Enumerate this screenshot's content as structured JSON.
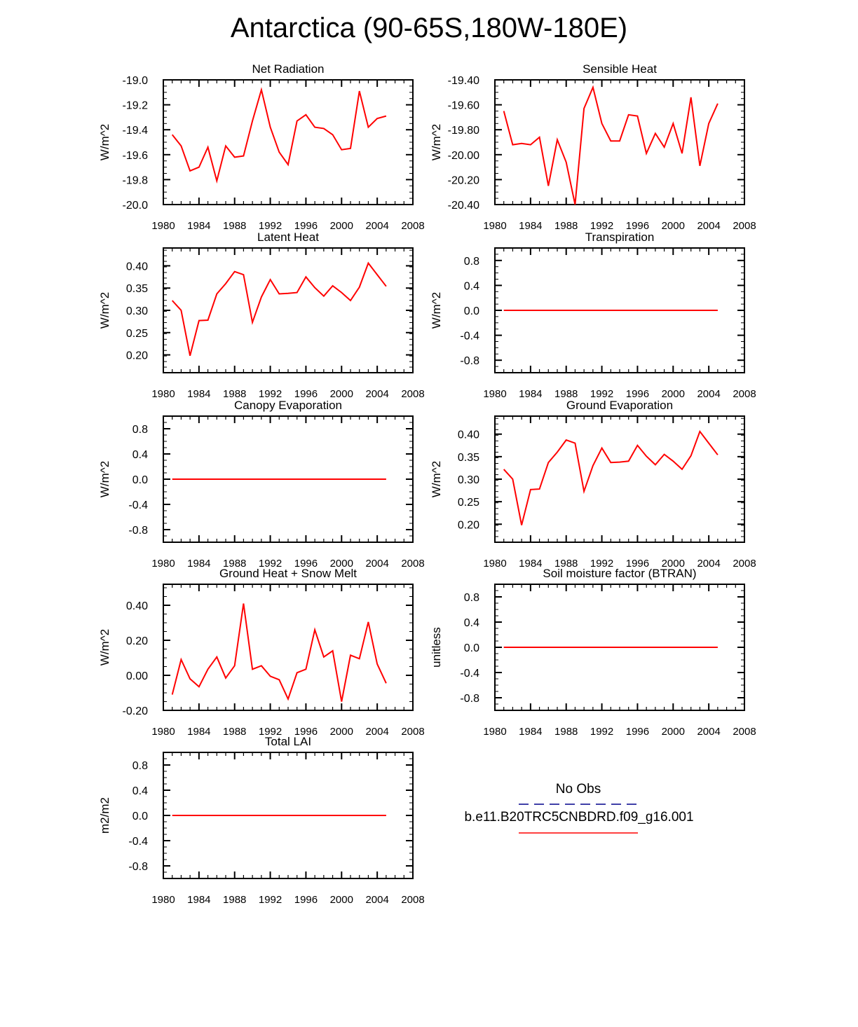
{
  "page_title": "Antarctica (90-65S,180W-180E)",
  "colors": {
    "model_line": "#ff0000",
    "obs_line": "#00008b",
    "frame": "#000000"
  },
  "legend": {
    "obs_label": "No Obs",
    "model_label": "b.e11.B20TRC5CNBDRD.f09_g16.001"
  },
  "chart_data": [
    {
      "type": "line",
      "title": "Net Radiation",
      "ylabel": "W/m^2",
      "xlim": [
        1980,
        2008
      ],
      "ylim": [
        -20.0,
        -19.0
      ],
      "x_ticks": [
        1980,
        1984,
        1988,
        1992,
        1996,
        2000,
        2004,
        2008
      ],
      "y_ticks": [
        -19.0,
        -19.2,
        -19.4,
        -19.6,
        -19.8,
        -20.0
      ],
      "y_tick_labels": [
        "-19.0",
        "-19.2",
        "-19.4",
        "-19.6",
        "-19.8",
        "-20.0"
      ],
      "x": [
        1981,
        1982,
        1983,
        1984,
        1985,
        1986,
        1987,
        1988,
        1989,
        1990,
        1991,
        1992,
        1993,
        1994,
        1995,
        1996,
        1997,
        1998,
        1999,
        2000,
        2001,
        2002,
        2003,
        2004,
        2005
      ],
      "series": [
        {
          "values": [
            -19.44,
            -19.53,
            -19.73,
            -19.7,
            -19.54,
            -19.81,
            -19.53,
            -19.62,
            -19.61,
            -19.33,
            -19.08,
            -19.38,
            -19.58,
            -19.68,
            -19.33,
            -19.28,
            -19.38,
            -19.39,
            -19.44,
            -19.56,
            -19.55,
            -19.09,
            -19.38,
            -19.31,
            -19.29
          ]
        }
      ]
    },
    {
      "type": "line",
      "title": "Sensible Heat",
      "ylabel": "W/m^2",
      "xlim": [
        1980,
        2008
      ],
      "ylim": [
        -20.4,
        -19.4
      ],
      "x_ticks": [
        1980,
        1984,
        1988,
        1992,
        1996,
        2000,
        2004,
        2008
      ],
      "y_ticks": [
        -19.4,
        -19.6,
        -19.8,
        -20.0,
        -20.2,
        -20.4
      ],
      "y_tick_labels": [
        "-19.40",
        "-19.60",
        "-19.80",
        "-20.00",
        "-20.20",
        "-20.40"
      ],
      "x": [
        1981,
        1982,
        1983,
        1984,
        1985,
        1986,
        1987,
        1988,
        1989,
        1990,
        1991,
        1992,
        1993,
        1994,
        1995,
        1996,
        1997,
        1998,
        1999,
        2000,
        2001,
        2002,
        2003,
        2004,
        2005
      ],
      "series": [
        {
          "values": [
            -19.65,
            -19.92,
            -19.91,
            -19.92,
            -19.86,
            -20.25,
            -19.88,
            -20.06,
            -20.4,
            -19.63,
            -19.46,
            -19.75,
            -19.89,
            -19.89,
            -19.68,
            -19.69,
            -19.99,
            -19.83,
            -19.94,
            -19.75,
            -19.99,
            -19.54,
            -20.09,
            -19.75,
            -19.59
          ]
        }
      ]
    },
    {
      "type": "line",
      "title": "Latent Heat",
      "ylabel": "W/m^2",
      "xlim": [
        1980,
        2008
      ],
      "ylim": [
        0.16,
        0.44
      ],
      "x_ticks": [
        1980,
        1984,
        1988,
        1992,
        1996,
        2000,
        2004,
        2008
      ],
      "y_ticks": [
        0.4,
        0.35,
        0.3,
        0.25,
        0.2
      ],
      "y_tick_labels": [
        "0.40",
        "0.35",
        "0.30",
        "0.25",
        "0.20"
      ],
      "x": [
        1981,
        1982,
        1983,
        1984,
        1985,
        1986,
        1987,
        1988,
        1989,
        1990,
        1991,
        1992,
        1993,
        1994,
        1995,
        1996,
        1997,
        1998,
        1999,
        2000,
        2001,
        2002,
        2003,
        2004,
        2005
      ],
      "series": [
        {
          "values": [
            0.322,
            0.3,
            0.198,
            0.277,
            0.278,
            0.337,
            0.36,
            0.387,
            0.38,
            0.273,
            0.33,
            0.369,
            0.337,
            0.338,
            0.34,
            0.375,
            0.351,
            0.332,
            0.355,
            0.34,
            0.322,
            0.352,
            0.406,
            0.38,
            0.354
          ]
        }
      ]
    },
    {
      "type": "line",
      "title": "Transpiration",
      "ylabel": "W/m^2",
      "xlim": [
        1980,
        2008
      ],
      "ylim": [
        -1.0,
        1.0
      ],
      "x_ticks": [
        1980,
        1984,
        1988,
        1992,
        1996,
        2000,
        2004,
        2008
      ],
      "y_ticks": [
        0.8,
        0.4,
        0.0,
        -0.4,
        -0.8
      ],
      "y_tick_labels": [
        "0.8",
        "0.4",
        "0.0",
        "-0.4",
        "-0.8"
      ],
      "x": [
        1981,
        2005
      ],
      "series": [
        {
          "values": [
            0.0,
            0.0
          ]
        }
      ]
    },
    {
      "type": "line",
      "title": "Canopy Evaporation",
      "ylabel": "W/m^2",
      "xlim": [
        1980,
        2008
      ],
      "ylim": [
        -1.0,
        1.0
      ],
      "x_ticks": [
        1980,
        1984,
        1988,
        1992,
        1996,
        2000,
        2004,
        2008
      ],
      "y_ticks": [
        0.8,
        0.4,
        0.0,
        -0.4,
        -0.8
      ],
      "y_tick_labels": [
        "0.8",
        "0.4",
        "0.0",
        "-0.4",
        "-0.8"
      ],
      "x": [
        1981,
        2005
      ],
      "series": [
        {
          "values": [
            0.0,
            0.0
          ]
        }
      ]
    },
    {
      "type": "line",
      "title": "Ground Evaporation",
      "ylabel": "W/m^2",
      "xlim": [
        1980,
        2008
      ],
      "ylim": [
        0.16,
        0.44
      ],
      "x_ticks": [
        1980,
        1984,
        1988,
        1992,
        1996,
        2000,
        2004,
        2008
      ],
      "y_ticks": [
        0.4,
        0.35,
        0.3,
        0.25,
        0.2
      ],
      "y_tick_labels": [
        "0.40",
        "0.35",
        "0.30",
        "0.25",
        "0.20"
      ],
      "x": [
        1981,
        1982,
        1983,
        1984,
        1985,
        1986,
        1987,
        1988,
        1989,
        1990,
        1991,
        1992,
        1993,
        1994,
        1995,
        1996,
        1997,
        1998,
        1999,
        2000,
        2001,
        2002,
        2003,
        2004,
        2005
      ],
      "series": [
        {
          "values": [
            0.322,
            0.3,
            0.198,
            0.277,
            0.278,
            0.337,
            0.36,
            0.387,
            0.38,
            0.273,
            0.33,
            0.369,
            0.337,
            0.338,
            0.34,
            0.375,
            0.351,
            0.332,
            0.355,
            0.34,
            0.322,
            0.352,
            0.406,
            0.38,
            0.354
          ]
        }
      ]
    },
    {
      "type": "line",
      "title": "Ground Heat + Snow Melt",
      "ylabel": "W/m^2",
      "xlim": [
        1980,
        2008
      ],
      "ylim": [
        -0.2,
        0.52
      ],
      "x_ticks": [
        1980,
        1984,
        1988,
        1992,
        1996,
        2000,
        2004,
        2008
      ],
      "y_ticks": [
        0.4,
        0.2,
        0.0,
        -0.2
      ],
      "y_tick_labels": [
        "0.40",
        "0.20",
        "0.00",
        "-0.20"
      ],
      "x": [
        1981,
        1982,
        1983,
        1984,
        1985,
        1986,
        1987,
        1988,
        1989,
        1990,
        1991,
        1992,
        1993,
        1994,
        1995,
        1996,
        1997,
        1998,
        1999,
        2000,
        2001,
        2002,
        2003,
        2004,
        2005
      ],
      "series": [
        {
          "values": [
            -0.11,
            0.09,
            -0.02,
            -0.065,
            0.035,
            0.105,
            -0.015,
            0.055,
            0.41,
            0.035,
            0.055,
            -0.005,
            -0.025,
            -0.135,
            0.015,
            0.035,
            0.26,
            0.105,
            0.14,
            -0.15,
            0.115,
            0.095,
            0.305,
            0.065,
            -0.045
          ]
        }
      ]
    },
    {
      "type": "line",
      "title": "Soil moisture factor (BTRAN)",
      "ylabel": "unitless",
      "xlim": [
        1980,
        2008
      ],
      "ylim": [
        -1.0,
        1.0
      ],
      "x_ticks": [
        1980,
        1984,
        1988,
        1992,
        1996,
        2000,
        2004,
        2008
      ],
      "y_ticks": [
        0.8,
        0.4,
        0.0,
        -0.4,
        -0.8
      ],
      "y_tick_labels": [
        "0.8",
        "0.4",
        "0.0",
        "-0.4",
        "-0.8"
      ],
      "x": [
        1981,
        2005
      ],
      "series": [
        {
          "values": [
            0.0,
            0.0
          ]
        }
      ]
    },
    {
      "type": "line",
      "title": "Total LAI",
      "ylabel": "m2/m2",
      "xlim": [
        1980,
        2008
      ],
      "ylim": [
        -1.0,
        1.0
      ],
      "x_ticks": [
        1980,
        1984,
        1988,
        1992,
        1996,
        2000,
        2004,
        2008
      ],
      "y_ticks": [
        0.8,
        0.4,
        0.0,
        -0.4,
        -0.8
      ],
      "y_tick_labels": [
        "0.8",
        "0.4",
        "0.0",
        "-0.4",
        "-0.8"
      ],
      "x": [
        1981,
        2005
      ],
      "series": [
        {
          "values": [
            0.0,
            0.0
          ]
        }
      ]
    }
  ]
}
